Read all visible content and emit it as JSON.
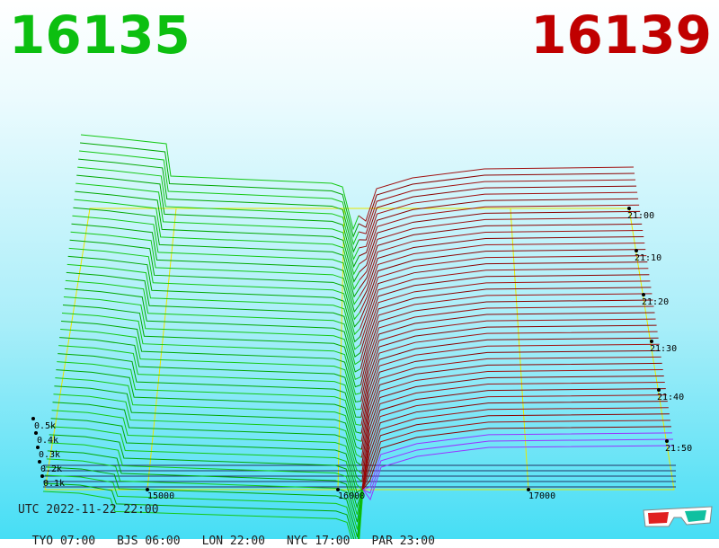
{
  "header": {
    "bid_price": "16135",
    "ask_price": "16139"
  },
  "chart_data": {
    "type": "depth-3d",
    "price_ticks": [
      "15000",
      "16000",
      "17000"
    ],
    "time_ticks": [
      "21:00",
      "21:10",
      "21:20",
      "21:30",
      "21:40",
      "21:50"
    ],
    "volume_ticks": [
      "0.5k",
      "0.4k",
      "0.3k",
      "0.2k",
      "0.1k"
    ],
    "series_colors": {
      "bids": "#00b000",
      "asks": "#8b0000",
      "latest_ask": "#9933ff",
      "frame": "#e8e800"
    }
  },
  "footer": {
    "utc": "UTC 2022-11-22 22:00",
    "zones": [
      "TYO 07:00",
      "BJS 06:00",
      "LON 22:00",
      "NYC 17:00",
      "PAR 23:00"
    ]
  },
  "icons": {
    "glasses": "3d-glasses-icon"
  }
}
